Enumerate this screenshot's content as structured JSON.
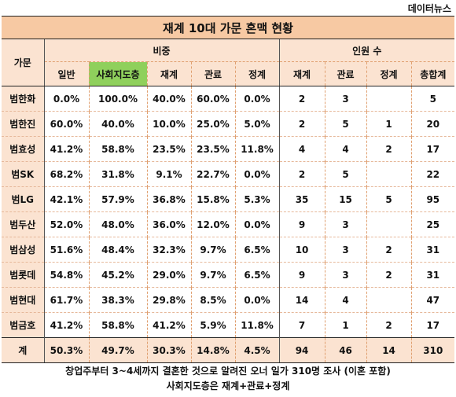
{
  "source": "데이터뉴스",
  "title": "재계 10대 가문 혼맥 현황",
  "header": {
    "row_label": "가문",
    "group_ratio": "비중",
    "group_count": "인원 수",
    "ratio_cols": [
      "일반",
      "사회지도층",
      "재계",
      "관료",
      "정계"
    ],
    "count_cols": [
      "재계",
      "관료",
      "정계",
      "총합계"
    ]
  },
  "rows": [
    {
      "name": "범한화",
      "ratio": [
        "0.0%",
        "100.0%",
        "40.0%",
        "60.0%",
        "0.0%"
      ],
      "count": [
        "2",
        "3",
        "",
        "5"
      ]
    },
    {
      "name": "범한진",
      "ratio": [
        "60.0%",
        "40.0%",
        "10.0%",
        "25.0%",
        "5.0%"
      ],
      "count": [
        "2",
        "5",
        "1",
        "20"
      ]
    },
    {
      "name": "범효성",
      "ratio": [
        "41.2%",
        "58.8%",
        "23.5%",
        "23.5%",
        "11.8%"
      ],
      "count": [
        "4",
        "4",
        "2",
        "17"
      ]
    },
    {
      "name": "범SK",
      "ratio": [
        "68.2%",
        "31.8%",
        "9.1%",
        "22.7%",
        "0.0%"
      ],
      "count": [
        "2",
        "5",
        "",
        "22"
      ]
    },
    {
      "name": "범LG",
      "ratio": [
        "42.1%",
        "57.9%",
        "36.8%",
        "15.8%",
        "5.3%"
      ],
      "count": [
        "35",
        "15",
        "5",
        "95"
      ]
    },
    {
      "name": "범두산",
      "ratio": [
        "52.0%",
        "48.0%",
        "36.0%",
        "12.0%",
        "0.0%"
      ],
      "count": [
        "9",
        "3",
        "",
        "25"
      ]
    },
    {
      "name": "범삼성",
      "ratio": [
        "51.6%",
        "48.4%",
        "32.3%",
        "9.7%",
        "6.5%"
      ],
      "count": [
        "10",
        "3",
        "2",
        "31"
      ]
    },
    {
      "name": "범롯데",
      "ratio": [
        "54.8%",
        "45.2%",
        "29.0%",
        "9.7%",
        "6.5%"
      ],
      "count": [
        "9",
        "3",
        "2",
        "31"
      ]
    },
    {
      "name": "범현대",
      "ratio": [
        "61.7%",
        "38.3%",
        "29.8%",
        "8.5%",
        "0.0%"
      ],
      "count": [
        "14",
        "4",
        "",
        "47"
      ]
    },
    {
      "name": "범금호",
      "ratio": [
        "41.2%",
        "58.8%",
        "41.2%",
        "5.9%",
        "11.8%"
      ],
      "count": [
        "7",
        "1",
        "2",
        "17"
      ]
    }
  ],
  "total": {
    "name": "계",
    "ratio": [
      "50.3%",
      "49.7%",
      "30.3%",
      "14.8%",
      "4.5%"
    ],
    "count": [
      "94",
      "46",
      "14",
      "310"
    ]
  },
  "footnotes": [
    "창업주부터 3~4세까지 결혼한 것으로 알려진 오너 일가 310명 조사 (이혼 포함)",
    "사회지도층은 재계+관료+정계"
  ],
  "colors": {
    "header_bg": "#fbe3d1",
    "title_bg": "#f7c9a3",
    "highlight": "#8fd05c"
  }
}
